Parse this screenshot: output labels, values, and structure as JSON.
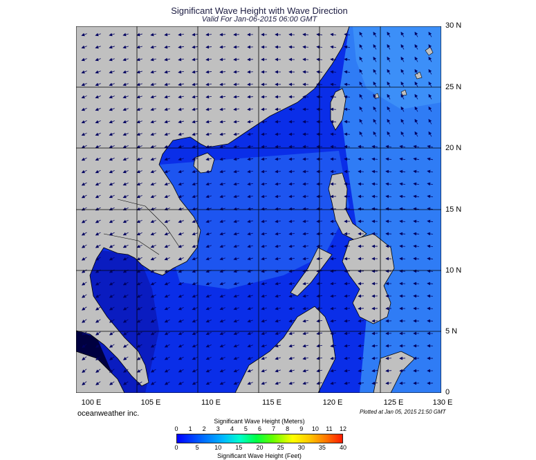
{
  "title": "Significant Wave Height with Wave Direction",
  "subtitle": "Valid For Jan-06-2015 06:00 GMT",
  "longitude_labels": [
    "100 E",
    "105 E",
    "110 E",
    "115 E",
    "120 E",
    "125 E",
    "130 E"
  ],
  "latitude_labels": [
    "30 N",
    "25 N",
    "20 N",
    "15 N",
    "10 N",
    "5 N",
    "0"
  ],
  "credit": "oceanweather inc.",
  "plotted": "Plotted at Jan 05, 2015 21:50 GMT",
  "colorbar": {
    "title_meters": "Significant Wave Height (Meters)",
    "meters_ticks": [
      "0",
      "1",
      "2",
      "3",
      "4",
      "5",
      "6",
      "7",
      "8",
      "9",
      "10",
      "11",
      "12"
    ],
    "feet_ticks": [
      "0",
      "5",
      "10",
      "15",
      "20",
      "25",
      "30",
      "35",
      "40"
    ],
    "title_feet": "Significant Wave Height (Feet)"
  },
  "map_extent": {
    "lon_min": 100,
    "lon_max": 130,
    "lat_min": 0,
    "lat_max": 30
  },
  "colors": {
    "land": "#c0c0c0",
    "sea_low": "#0a28e6",
    "sea_mid": "#1e5af5",
    "sea_high": "#2f8cf8",
    "arrow": "#000060"
  }
}
